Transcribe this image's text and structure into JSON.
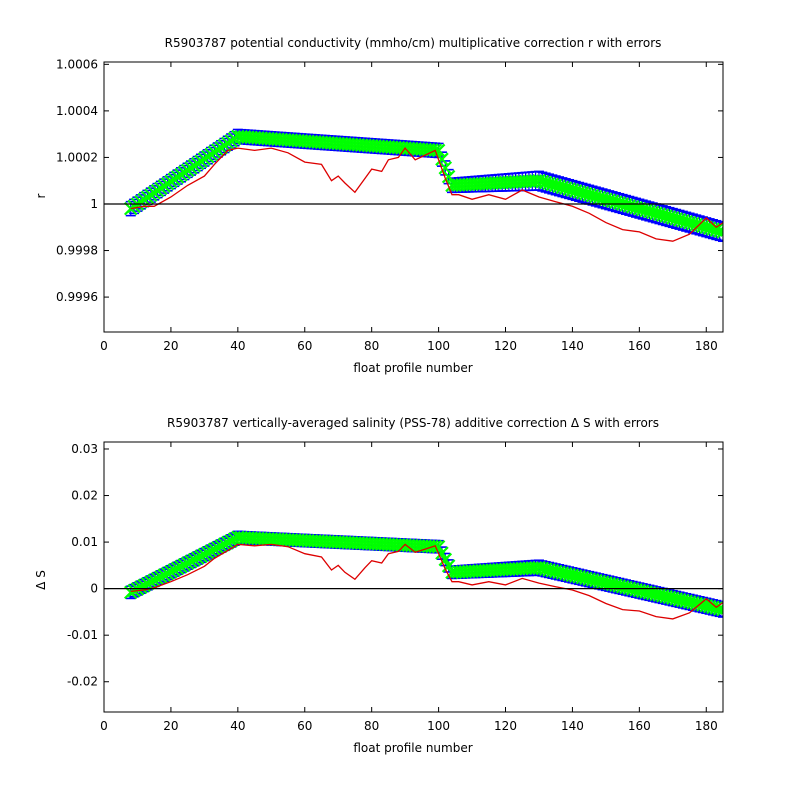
{
  "colors": {
    "error_bars": "#0000ff",
    "fit": "#00ff00",
    "raw": "#dd0000",
    "zero_line": "#000000"
  },
  "chart_data": [
    {
      "type": "line",
      "title": "R5903787 potential conductivity (mmho/cm) multiplicative correction r with errors",
      "xlabel": "float profile number",
      "ylabel": "r",
      "xlim": [
        0,
        185
      ],
      "ylim": [
        0.99945,
        1.00061
      ],
      "xticks": [
        0,
        20,
        40,
        60,
        80,
        100,
        120,
        140,
        160,
        180
      ],
      "xtick_labels": [
        "0",
        "20",
        "40",
        "60",
        "80",
        "100",
        "120",
        "140",
        "160",
        "180"
      ],
      "yticks": [
        0.9996,
        0.9998,
        1.0,
        1.0002,
        1.0004,
        1.0006
      ],
      "ytick_labels": [
        "0.9996",
        "0.9998",
        "1",
        "1.0002",
        "1.0004",
        "1.0006"
      ],
      "reference_line": 1.0,
      "grid": false,
      "series": [
        {
          "role": "fitted correction with error bars",
          "x": [
            8,
            40,
            100,
            104,
            130,
            185
          ],
          "y": [
            0.99998,
            1.00029,
            1.00023,
            1.00008,
            1.0001,
            0.99988
          ],
          "error": [
            3e-05,
            3e-05,
            3e-05,
            3e-05,
            4e-05,
            4e-05
          ]
        },
        {
          "role": "raw correction estimates",
          "x": [
            8,
            12,
            15,
            20,
            25,
            30,
            33,
            37,
            40,
            45,
            50,
            55,
            60,
            65,
            68,
            70,
            72,
            75,
            78,
            80,
            83,
            85,
            88,
            90,
            93,
            96,
            99,
            102,
            104,
            106,
            110,
            115,
            120,
            125,
            130,
            135,
            140,
            145,
            150,
            155,
            160,
            165,
            170,
            175,
            180,
            183,
            185
          ],
          "y": [
            0.99998,
            0.99999,
            0.99999,
            1.00003,
            1.00008,
            1.00012,
            1.00017,
            1.00023,
            1.00024,
            1.00023,
            1.00024,
            1.00022,
            1.00018,
            1.00017,
            1.0001,
            1.00012,
            1.00009,
            1.00005,
            1.00011,
            1.00015,
            1.00014,
            1.00019,
            1.0002,
            1.00024,
            1.00019,
            1.00021,
            1.00023,
            1.00011,
            1.00004,
            1.00004,
            1.00002,
            1.00004,
            1.00002,
            1.00006,
            1.00003,
            1.00001,
            0.99999,
            0.99996,
            0.99992,
            0.99989,
            0.99988,
            0.99985,
            0.99984,
            0.99987,
            0.99994,
            0.9999,
            0.99992
          ]
        }
      ]
    },
    {
      "type": "line",
      "title": "R5903787 vertically-averaged salinity (PSS-78) additive correction Δ S with errors",
      "xlabel": "float profile number",
      "ylabel": "Δ S",
      "xlim": [
        0,
        185
      ],
      "ylim": [
        -0.0265,
        0.0315
      ],
      "xticks": [
        0,
        20,
        40,
        60,
        80,
        100,
        120,
        140,
        160,
        180
      ],
      "xtick_labels": [
        "0",
        "20",
        "40",
        "60",
        "80",
        "100",
        "120",
        "140",
        "160",
        "180"
      ],
      "yticks": [
        -0.02,
        -0.01,
        0,
        0.01,
        0.02,
        0.03
      ],
      "ytick_labels": [
        "-0.02",
        "-0.01",
        "0",
        "0.01",
        "0.02",
        "0.03"
      ],
      "reference_line": 0,
      "grid": false,
      "series": [
        {
          "role": "fitted correction with error bars",
          "x": [
            8,
            40,
            100,
            104,
            130,
            185
          ],
          "y": [
            -0.0008,
            0.011,
            0.009,
            0.0035,
            0.0045,
            -0.0045
          ],
          "error": [
            0.0013,
            0.0013,
            0.0013,
            0.0013,
            0.0016,
            0.0016
          ]
        },
        {
          "role": "raw correction estimates",
          "x": [
            8,
            12,
            15,
            20,
            25,
            30,
            33,
            37,
            40,
            45,
            50,
            55,
            60,
            65,
            68,
            70,
            72,
            75,
            78,
            80,
            83,
            85,
            88,
            90,
            93,
            96,
            99,
            102,
            104,
            106,
            110,
            115,
            120,
            125,
            130,
            135,
            140,
            145,
            150,
            155,
            160,
            165,
            170,
            175,
            180,
            183,
            185
          ],
          "y": [
            -0.0006,
            -0.0003,
            0.0002,
            0.0015,
            0.003,
            0.0048,
            0.0065,
            0.0082,
            0.0095,
            0.0092,
            0.0095,
            0.009,
            0.0075,
            0.0068,
            0.004,
            0.005,
            0.0035,
            0.002,
            0.0045,
            0.006,
            0.0055,
            0.0075,
            0.008,
            0.0095,
            0.0078,
            0.0085,
            0.0092,
            0.0042,
            0.0015,
            0.0015,
            0.0008,
            0.0015,
            0.0008,
            0.0022,
            0.0012,
            0.0004,
            -0.0003,
            -0.0015,
            -0.0032,
            -0.0045,
            -0.0048,
            -0.006,
            -0.0065,
            -0.0052,
            -0.0022,
            -0.004,
            -0.003
          ]
        }
      ]
    }
  ]
}
